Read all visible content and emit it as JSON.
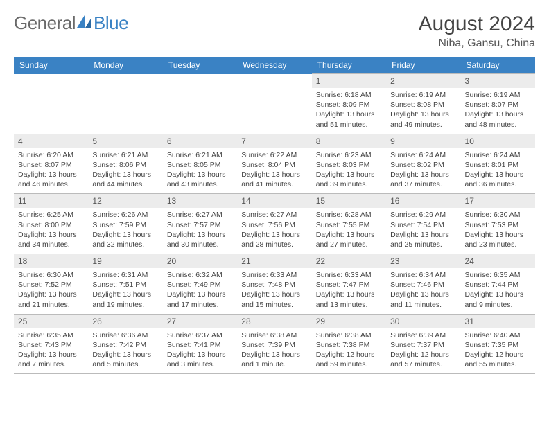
{
  "logo": {
    "text1": "General",
    "text2": "Blue"
  },
  "title": "August 2024",
  "location": "Niba, Gansu, China",
  "dayHeaders": [
    "Sunday",
    "Monday",
    "Tuesday",
    "Wednesday",
    "Thursday",
    "Friday",
    "Saturday"
  ],
  "colors": {
    "headerBg": "#3a82c4",
    "headerFg": "#ffffff",
    "dayNumBg": "#ececec",
    "bodyText": "#444444",
    "border": "#bbbbbb"
  },
  "weeks": [
    [
      null,
      null,
      null,
      null,
      {
        "n": "1",
        "sunrise": "6:18 AM",
        "sunset": "8:09 PM",
        "dayH": "13",
        "dayM": "51"
      },
      {
        "n": "2",
        "sunrise": "6:19 AM",
        "sunset": "8:08 PM",
        "dayH": "13",
        "dayM": "49"
      },
      {
        "n": "3",
        "sunrise": "6:19 AM",
        "sunset": "8:07 PM",
        "dayH": "13",
        "dayM": "48"
      }
    ],
    [
      {
        "n": "4",
        "sunrise": "6:20 AM",
        "sunset": "8:07 PM",
        "dayH": "13",
        "dayM": "46"
      },
      {
        "n": "5",
        "sunrise": "6:21 AM",
        "sunset": "8:06 PM",
        "dayH": "13",
        "dayM": "44"
      },
      {
        "n": "6",
        "sunrise": "6:21 AM",
        "sunset": "8:05 PM",
        "dayH": "13",
        "dayM": "43"
      },
      {
        "n": "7",
        "sunrise": "6:22 AM",
        "sunset": "8:04 PM",
        "dayH": "13",
        "dayM": "41"
      },
      {
        "n": "8",
        "sunrise": "6:23 AM",
        "sunset": "8:03 PM",
        "dayH": "13",
        "dayM": "39"
      },
      {
        "n": "9",
        "sunrise": "6:24 AM",
        "sunset": "8:02 PM",
        "dayH": "13",
        "dayM": "37"
      },
      {
        "n": "10",
        "sunrise": "6:24 AM",
        "sunset": "8:01 PM",
        "dayH": "13",
        "dayM": "36"
      }
    ],
    [
      {
        "n": "11",
        "sunrise": "6:25 AM",
        "sunset": "8:00 PM",
        "dayH": "13",
        "dayM": "34"
      },
      {
        "n": "12",
        "sunrise": "6:26 AM",
        "sunset": "7:59 PM",
        "dayH": "13",
        "dayM": "32"
      },
      {
        "n": "13",
        "sunrise": "6:27 AM",
        "sunset": "7:57 PM",
        "dayH": "13",
        "dayM": "30"
      },
      {
        "n": "14",
        "sunrise": "6:27 AM",
        "sunset": "7:56 PM",
        "dayH": "13",
        "dayM": "28"
      },
      {
        "n": "15",
        "sunrise": "6:28 AM",
        "sunset": "7:55 PM",
        "dayH": "13",
        "dayM": "27"
      },
      {
        "n": "16",
        "sunrise": "6:29 AM",
        "sunset": "7:54 PM",
        "dayH": "13",
        "dayM": "25"
      },
      {
        "n": "17",
        "sunrise": "6:30 AM",
        "sunset": "7:53 PM",
        "dayH": "13",
        "dayM": "23"
      }
    ],
    [
      {
        "n": "18",
        "sunrise": "6:30 AM",
        "sunset": "7:52 PM",
        "dayH": "13",
        "dayM": "21"
      },
      {
        "n": "19",
        "sunrise": "6:31 AM",
        "sunset": "7:51 PM",
        "dayH": "13",
        "dayM": "19"
      },
      {
        "n": "20",
        "sunrise": "6:32 AM",
        "sunset": "7:49 PM",
        "dayH": "13",
        "dayM": "17"
      },
      {
        "n": "21",
        "sunrise": "6:33 AM",
        "sunset": "7:48 PM",
        "dayH": "13",
        "dayM": "15"
      },
      {
        "n": "22",
        "sunrise": "6:33 AM",
        "sunset": "7:47 PM",
        "dayH": "13",
        "dayM": "13"
      },
      {
        "n": "23",
        "sunrise": "6:34 AM",
        "sunset": "7:46 PM",
        "dayH": "13",
        "dayM": "11"
      },
      {
        "n": "24",
        "sunrise": "6:35 AM",
        "sunset": "7:44 PM",
        "dayH": "13",
        "dayM": "9"
      }
    ],
    [
      {
        "n": "25",
        "sunrise": "6:35 AM",
        "sunset": "7:43 PM",
        "dayH": "13",
        "dayM": "7"
      },
      {
        "n": "26",
        "sunrise": "6:36 AM",
        "sunset": "7:42 PM",
        "dayH": "13",
        "dayM": "5"
      },
      {
        "n": "27",
        "sunrise": "6:37 AM",
        "sunset": "7:41 PM",
        "dayH": "13",
        "dayM": "3"
      },
      {
        "n": "28",
        "sunrise": "6:38 AM",
        "sunset": "7:39 PM",
        "dayH": "13",
        "dayM": "1"
      },
      {
        "n": "29",
        "sunrise": "6:38 AM",
        "sunset": "7:38 PM",
        "dayH": "12",
        "dayM": "59"
      },
      {
        "n": "30",
        "sunrise": "6:39 AM",
        "sunset": "7:37 PM",
        "dayH": "12",
        "dayM": "57"
      },
      {
        "n": "31",
        "sunrise": "6:40 AM",
        "sunset": "7:35 PM",
        "dayH": "12",
        "dayM": "55"
      }
    ]
  ]
}
